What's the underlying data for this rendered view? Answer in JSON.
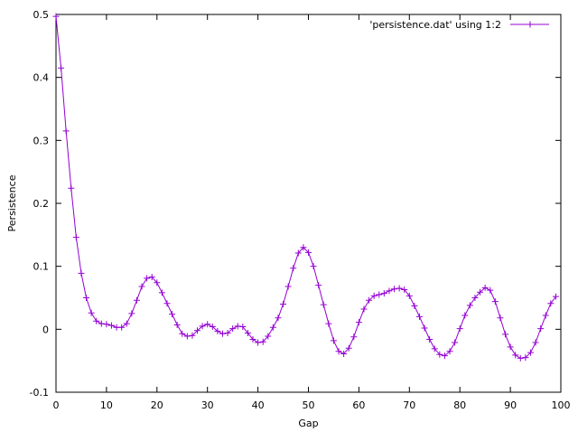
{
  "chart_data": {
    "type": "line",
    "title": "",
    "xlabel": "Gap",
    "ylabel": "Persistence",
    "xlim": [
      0,
      100
    ],
    "ylim": [
      -0.1,
      0.5
    ],
    "xticks": [
      0,
      10,
      20,
      30,
      40,
      50,
      60,
      70,
      80,
      90,
      100
    ],
    "xtick_labels": [
      "0",
      "10",
      "20",
      "30",
      "40",
      "50",
      "60",
      "70",
      "80",
      "90",
      "100"
    ],
    "yticks": [
      -0.1,
      0,
      0.1,
      0.2,
      0.3,
      0.4,
      0.5
    ],
    "ytick_labels": [
      "-0.1",
      "0",
      "0.1",
      "0.2",
      "0.3",
      "0.4",
      "0.5"
    ],
    "grid": false,
    "legend": "top-right",
    "marker": "plus",
    "series": [
      {
        "name": "'persistence.dat' using 1:2",
        "color": "#9400D3",
        "x": [
          0,
          1,
          2,
          3,
          4,
          5,
          6,
          7,
          8,
          9,
          10,
          11,
          12,
          13,
          14,
          15,
          16,
          17,
          18,
          19,
          20,
          21,
          22,
          23,
          24,
          25,
          26,
          27,
          28,
          29,
          30,
          31,
          32,
          33,
          34,
          35,
          36,
          37,
          38,
          39,
          40,
          41,
          42,
          43,
          44,
          45,
          46,
          47,
          48,
          49,
          50,
          51,
          52,
          53,
          54,
          55,
          56,
          57,
          58,
          59,
          60,
          61,
          62,
          63,
          64,
          65,
          66,
          67,
          68,
          69,
          70,
          71,
          72,
          73,
          74,
          75,
          76,
          77,
          78,
          79,
          80,
          81,
          82,
          83,
          84,
          85,
          86,
          87,
          88,
          89,
          90,
          91,
          92,
          93,
          94,
          95,
          96,
          97,
          98,
          99
        ],
        "y": [
          0.497,
          0.415,
          0.315,
          0.224,
          0.146,
          0.089,
          0.05,
          0.026,
          0.013,
          0.009,
          0.008,
          0.006,
          0.003,
          0.003,
          0.009,
          0.025,
          0.046,
          0.068,
          0.081,
          0.083,
          0.074,
          0.058,
          0.041,
          0.024,
          0.007,
          -0.007,
          -0.011,
          -0.01,
          -0.002,
          0.005,
          0.008,
          0.004,
          -0.003,
          -0.007,
          -0.006,
          0.001,
          0.005,
          0.004,
          -0.006,
          -0.016,
          -0.021,
          -0.02,
          -0.011,
          0.003,
          0.018,
          0.04,
          0.068,
          0.097,
          0.121,
          0.13,
          0.122,
          0.1,
          0.07,
          0.039,
          0.009,
          -0.018,
          -0.035,
          -0.039,
          -0.03,
          -0.012,
          0.011,
          0.032,
          0.046,
          0.053,
          0.055,
          0.057,
          0.061,
          0.064,
          0.065,
          0.063,
          0.053,
          0.037,
          0.02,
          0.002,
          -0.016,
          -0.031,
          -0.04,
          -0.042,
          -0.035,
          -0.021,
          0.001,
          0.022,
          0.038,
          0.05,
          0.059,
          0.066,
          0.062,
          0.044,
          0.018,
          -0.008,
          -0.028,
          -0.041,
          -0.046,
          -0.045,
          -0.037,
          -0.021,
          0.001,
          0.022,
          0.041,
          0.052
        ]
      }
    ]
  }
}
